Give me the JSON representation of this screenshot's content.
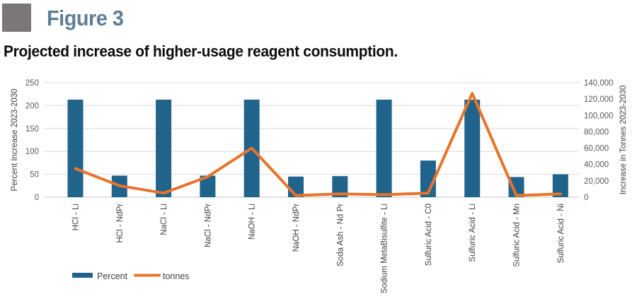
{
  "header": {
    "figure_label": "Figure 3",
    "title": "Projected increase of higher-usage reagent consumption."
  },
  "colors": {
    "figure_label": "#5d7e96",
    "marker_gray": "#7a7776",
    "bar": "#20648c",
    "line": "#e8742c",
    "gridline": "#d9d9d9",
    "axis_line": "#c6c6c6",
    "tick_text": "#595959",
    "label_text": "#404040"
  },
  "chart_data": {
    "type": "bar",
    "subtype": "combo-bar-line",
    "categories": [
      "HCl - Li",
      "HCl - NdPr",
      "NaCl - Li",
      "NaCl - NdPr",
      "NaOH - Li",
      "NaOH - NdPr",
      "Soda Ash - Nd Pr",
      "Sodium MetaBisulfite - Li",
      "Sulfuric Acid - C0",
      "Sulfuric Acid - Li",
      "Sulfuric Acid - Mn",
      "Sulfuric Acid - Ni"
    ],
    "series": [
      {
        "name": "Percent",
        "type": "bar",
        "axis": "left",
        "color": "#20648c",
        "values": [
          213,
          47,
          213,
          47,
          213,
          45,
          46,
          213,
          80,
          213,
          44,
          50
        ]
      },
      {
        "name": "tonnes",
        "type": "line",
        "axis": "right",
        "color": "#e8742c",
        "values": [
          35000,
          14000,
          5000,
          25000,
          60000,
          2000,
          4000,
          3000,
          5000,
          127000,
          2000,
          4000
        ]
      }
    ],
    "left_axis": {
      "label": "Percent Increase 2023-2030",
      "min": 0,
      "max": 250,
      "step": 50,
      "ticks": [
        "0",
        "50",
        "100",
        "150",
        "200",
        "250"
      ]
    },
    "right_axis": {
      "label": "Increase in Tonnes 2023-2030",
      "min": 0,
      "max": 140000,
      "step": 20000,
      "ticks": [
        "0",
        "20,000",
        "40,000",
        "60,000",
        "80,000",
        "100,000",
        "120,000",
        "140,000"
      ]
    },
    "legend": [
      {
        "label": "Percent",
        "swatch": "rect",
        "color": "#20648c"
      },
      {
        "label": "tonnes",
        "swatch": "line",
        "color": "#e8742c"
      }
    ],
    "grid": true,
    "legend_position": "bottom-left"
  }
}
